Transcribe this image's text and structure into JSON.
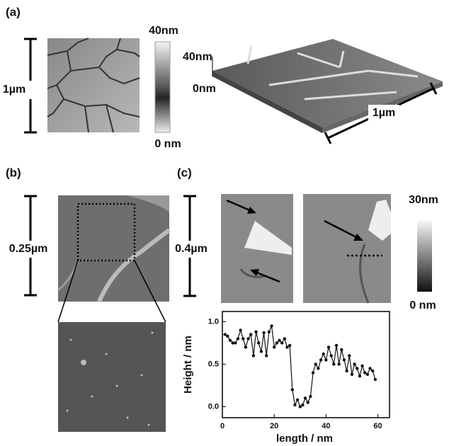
{
  "panels": {
    "a": {
      "label": "(a)",
      "scale": "1µm",
      "colorbar_max": "40nm",
      "colorbar_min": "0 nm",
      "z_max": "40nm",
      "z_min": "0nm",
      "scale_3d": "1µm"
    },
    "b": {
      "label": "(b)",
      "scale": "0.25µm"
    },
    "c": {
      "label": "(c)",
      "scale": "0.4µm",
      "colorbar_max": "30nm",
      "colorbar_min": "0 nm"
    }
  },
  "chart_data": {
    "type": "line",
    "x_label": "length / nm",
    "y_label": "Height / nm",
    "x": [
      1,
      2,
      3,
      4,
      5,
      6,
      7,
      8,
      9,
      10,
      11,
      12,
      13,
      14,
      15,
      16,
      17,
      18,
      19,
      20,
      21,
      22,
      23,
      24,
      25,
      26,
      27,
      28,
      29,
      30,
      31,
      32,
      33,
      34,
      35,
      36,
      37,
      38,
      39,
      40,
      41,
      42,
      43,
      44,
      45,
      46,
      47,
      48,
      49,
      50,
      51,
      52,
      53,
      54,
      55,
      56,
      57,
      58,
      59
    ],
    "series": [
      {
        "color": "#111111",
        "values": [
          0.85,
          0.83,
          0.78,
          0.75,
          0.75,
          0.8,
          0.9,
          0.8,
          0.7,
          0.8,
          0.85,
          0.6,
          0.88,
          0.75,
          0.65,
          0.87,
          0.6,
          0.88,
          0.95,
          0.7,
          0.75,
          0.78,
          0.75,
          0.8,
          0.7,
          0.72,
          0.2,
          0.02,
          0.08,
          0.0,
          0.02,
          0.1,
          0.05,
          0.12,
          0.4,
          0.5,
          0.45,
          0.55,
          0.62,
          0.55,
          0.7,
          0.6,
          0.5,
          0.72,
          0.5,
          0.67,
          0.55,
          0.42,
          0.6,
          0.38,
          0.5,
          0.45,
          0.36,
          0.48,
          0.4,
          0.38,
          0.45,
          0.42,
          0.32
        ]
      }
    ],
    "xlim": [
      0,
      64.5
    ],
    "ylim": [
      -0.13,
      1.12
    ],
    "xticks": [
      0,
      20,
      40,
      60
    ],
    "yticks": [
      {
        "value": 0,
        "label": "0.0"
      },
      {
        "value": 0.5,
        "label": "0.5"
      },
      {
        "value": 1,
        "label": "1.0"
      }
    ]
  }
}
